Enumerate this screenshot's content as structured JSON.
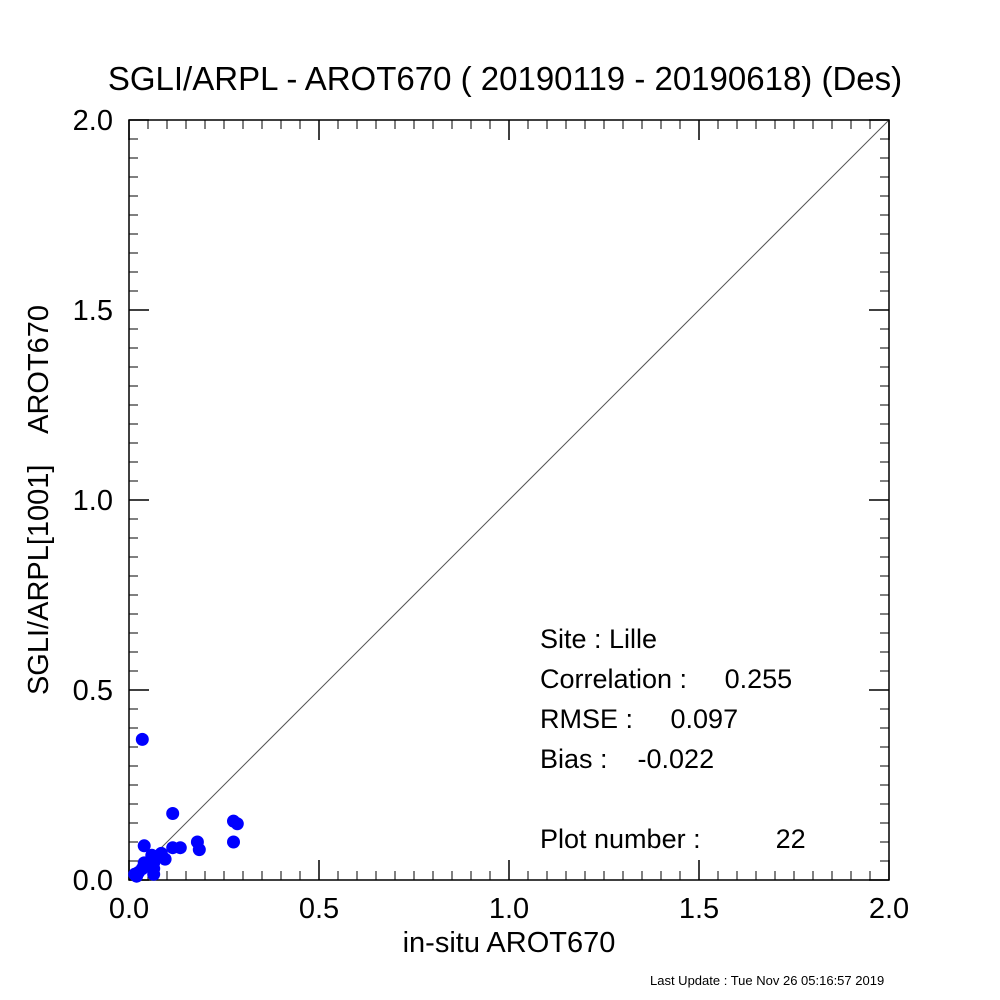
{
  "chart_data": {
    "type": "scatter",
    "title": "SGLI/ARPL - AROT670 ( 20190119 - 20190618) (Des)",
    "xlabel": "in-situ AROT670",
    "ylabel": "SGLI/ARPL[1001]    AROT670",
    "xlim": [
      0.0,
      2.0
    ],
    "ylim": [
      0.0,
      2.0
    ],
    "xticks": [
      "0.0",
      "0.5",
      "1.0",
      "1.5",
      "2.0"
    ],
    "yticks": [
      "0.0",
      "0.5",
      "1.0",
      "1.5",
      "2.0"
    ],
    "major_tick_values": [
      0.0,
      0.5,
      1.0,
      1.5,
      2.0
    ],
    "minor_tick_step": 0.05,
    "reference_line": "1:1",
    "grid": false,
    "point_color": "#0000ff",
    "points": [
      {
        "x": 0.035,
        "y": 0.37
      },
      {
        "x": 0.04,
        "y": 0.09
      },
      {
        "x": 0.115,
        "y": 0.175
      },
      {
        "x": 0.275,
        "y": 0.155
      },
      {
        "x": 0.285,
        "y": 0.148
      },
      {
        "x": 0.275,
        "y": 0.1
      },
      {
        "x": 0.18,
        "y": 0.1
      },
      {
        "x": 0.185,
        "y": 0.08
      },
      {
        "x": 0.135,
        "y": 0.085
      },
      {
        "x": 0.115,
        "y": 0.085
      },
      {
        "x": 0.095,
        "y": 0.055
      },
      {
        "x": 0.085,
        "y": 0.07
      },
      {
        "x": 0.075,
        "y": 0.06
      },
      {
        "x": 0.065,
        "y": 0.045
      },
      {
        "x": 0.065,
        "y": 0.03
      },
      {
        "x": 0.065,
        "y": 0.015
      },
      {
        "x": 0.04,
        "y": 0.045
      },
      {
        "x": 0.035,
        "y": 0.03
      },
      {
        "x": 0.025,
        "y": 0.02
      },
      {
        "x": 0.02,
        "y": 0.01
      },
      {
        "x": 0.015,
        "y": 0.015
      },
      {
        "x": 0.06,
        "y": 0.065
      }
    ]
  },
  "stats": {
    "site": "Site : Lille",
    "correlation": "Correlation :     0.255",
    "rmse": "RMSE :     0.097",
    "bias": "Bias :    -0.022",
    "plot_number": "Plot number :          22"
  },
  "footer": {
    "last_update": "Last Update : Tue Nov 26 05:16:57 2019"
  }
}
